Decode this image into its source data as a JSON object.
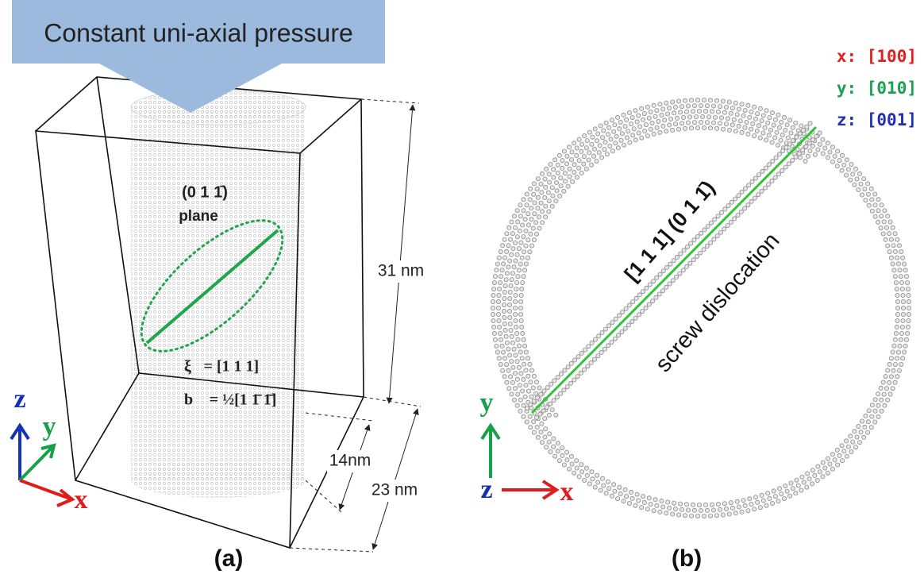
{
  "banner": {
    "text": "Constant uni-axial pressure"
  },
  "panel_a": {
    "plane_label": "(0 1 1̄)",
    "plane_word": "plane",
    "line_direction": "ξ⃗= [1 1 1]",
    "burgers_vector": "b⃗ = ½[1 1̄ 1̄]",
    "height": "31 nm",
    "diameter": "14nm",
    "width": "23 nm",
    "axes": {
      "z": "z",
      "y": "y",
      "x": "x"
    },
    "caption": "(a)"
  },
  "panel_b": {
    "legend": [
      "x: [100]",
      "y: [010]",
      "z: [001]"
    ],
    "dislocation_plane": "[1 1 1] (0 1 1̄)",
    "dislocation_type": "screw dislocation",
    "axes": {
      "y": "y",
      "z": "z",
      "x": "x"
    },
    "caption": "(b)"
  }
}
